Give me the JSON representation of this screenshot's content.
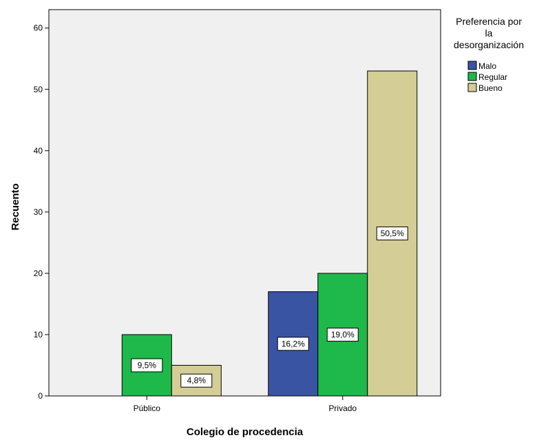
{
  "chart_data": {
    "type": "bar",
    "xlabel": "Colegio de procedencia",
    "ylabel": "Recuento",
    "ylim": [
      0,
      63
    ],
    "yticks": [
      0,
      10,
      20,
      30,
      40,
      50,
      60
    ],
    "categories": [
      "Público",
      "Privado"
    ],
    "legend": {
      "title": [
        "Preferencia por",
        "la",
        "desorganización"
      ],
      "placement": "right"
    },
    "series": [
      {
        "name": "Malo",
        "color": "#3a54a4",
        "values": [
          0,
          17
        ],
        "labels": [
          "",
          "16,2%"
        ]
      },
      {
        "name": "Regular",
        "color": "#1fb84a",
        "values": [
          10,
          20
        ],
        "labels": [
          "9,5%",
          "19,0%"
        ]
      },
      {
        "name": "Bueno",
        "color": "#d4cd96",
        "values": [
          5,
          53
        ],
        "labels": [
          "4,8%",
          "50,5%"
        ]
      }
    ],
    "plot_background": "#f0f0f0",
    "grid": false
  }
}
